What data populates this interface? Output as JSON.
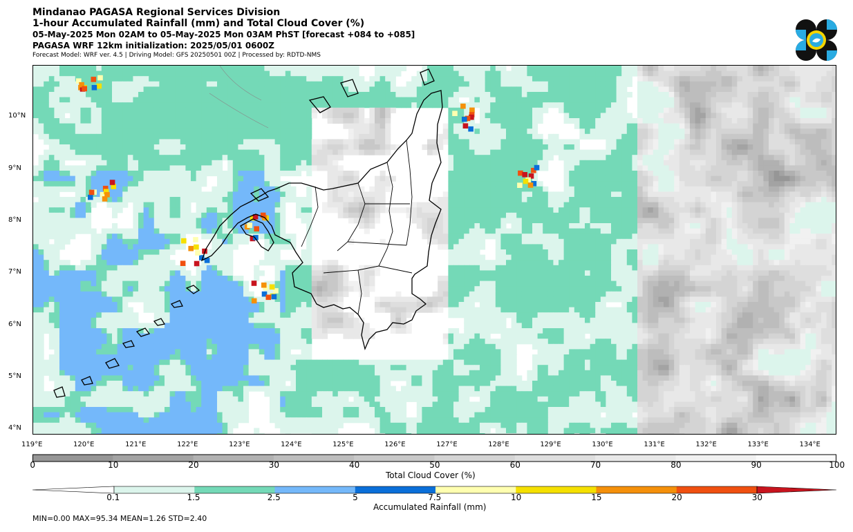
{
  "header": {
    "line1": "Mindanao PAGASA Regional Services Division",
    "line2": "1-hour Accumulated Rainfall (mm) and Total Cloud Cover (%)",
    "line3": "05-May-2025 Mon 02AM to 05-May-2025 Mon 03AM PhST [forecast +084 to +085]",
    "line4": "PAGASA WRF 12km initialization: 2025/05/01 0600Z",
    "line5": "Forecast Model: WRF ver. 4.5 | Driving Model: GFS 20250501 00Z | Processed by: RDTD-NMS"
  },
  "logo": {
    "icon": "pagasa-logo-icon",
    "colors": [
      "#111111",
      "#29abe2",
      "#f5d400"
    ]
  },
  "map": {
    "lon_range": [
      119,
      134.5
    ],
    "lat_range": [
      3.9,
      11.0
    ],
    "lon_labels": [
      "119°E",
      "120°E",
      "121°E",
      "122°E",
      "123°E",
      "124°E",
      "125°E",
      "126°E",
      "127°E",
      "128°E",
      "129°E",
      "130°E",
      "131°E",
      "132°E",
      "133°E",
      "134°E"
    ],
    "lat_labels": [
      "10°N",
      "9°N",
      "8°N",
      "7°N",
      "6°N",
      "5°N",
      "4°N"
    ]
  },
  "cloud_colorbar": {
    "title": "Total Cloud Cover (%)",
    "tick_labels": [
      "0",
      "10",
      "20",
      "30",
      "40",
      "50",
      "60",
      "70",
      "80",
      "90",
      "100"
    ],
    "colors": [
      "#969696",
      "#a3a3a3",
      "#b1b1b1",
      "#bdbdbd",
      "#c8c8c8",
      "#d4d4d4",
      "#dedede",
      "#e8e8e8",
      "#f1f1f1",
      "#fafafa"
    ]
  },
  "rain_colorbar": {
    "title": "Accumulated Rainfall (mm)",
    "tick_labels": [
      "0.1",
      "1.5",
      "2.5",
      "5",
      "7.5",
      "10",
      "15",
      "20",
      "30"
    ],
    "colors": [
      "#ffffff",
      "#dcf5ec",
      "#74d9b7",
      "#74b8fa",
      "#0a6fd9",
      "#ffffb0",
      "#f5e000",
      "#f5900a",
      "#f05010",
      "#c8141e"
    ]
  },
  "stats": "MIN=0.00   MAX=95.34   MEAN=1.26   STD=2.40"
}
